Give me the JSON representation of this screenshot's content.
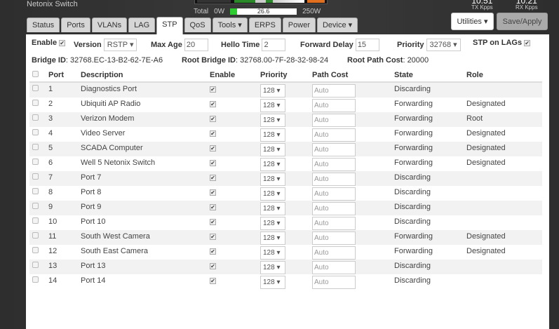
{
  "header": {
    "title": "Netonix Switch",
    "total_label": "Total",
    "power_min": "0W",
    "power_value": "26.6",
    "power_max": "250W",
    "power_fraction": 0.106,
    "tx_value": "10.51",
    "tx_label": "TX Kpps",
    "rx_value": "10.21",
    "rx_label": "RX Kpps"
  },
  "tabs": [
    {
      "label": "Status"
    },
    {
      "label": "Ports"
    },
    {
      "label": "VLANs"
    },
    {
      "label": "LAG"
    },
    {
      "label": "STP",
      "active": true
    },
    {
      "label": "QoS"
    },
    {
      "label": "Tools ▾"
    },
    {
      "label": "ERPS"
    },
    {
      "label": "Power"
    },
    {
      "label": "Device ▾"
    }
  ],
  "buttons": {
    "utilities": "Utilities ▾",
    "save": "Save/Apply"
  },
  "config": {
    "enable_label": "Enable",
    "version_label": "Version",
    "version": "RSTP ▾",
    "max_age_label": "Max Age",
    "max_age": "20",
    "hello_label": "Hello Time",
    "hello": "2",
    "fwd_label": "Forward Delay",
    "fwd": "15",
    "priority_label": "Priority",
    "priority": "32768 ▾",
    "lags_label": "STP on LAGs"
  },
  "info": {
    "bridge_label": "Bridge ID",
    "bridge": ": 32768.EC-13-B2-62-7E-A6",
    "root_label": "Root Bridge ID",
    "root": ": 32768.00-7F-28-32-98-24",
    "cost_label": "Root Path Cost",
    "cost": ": 20000"
  },
  "table": {
    "headers": [
      "Port",
      "Description",
      "Enable",
      "Priority",
      "Path Cost",
      "State",
      "Role"
    ],
    "rows": [
      {
        "port": "1",
        "desc": "Diagnostics Port",
        "priority": "128 ▾",
        "cost": "Auto",
        "state": "Discarding",
        "role": ""
      },
      {
        "port": "2",
        "desc": "Ubiquiti AP Radio",
        "priority": "128 ▾",
        "cost": "Auto",
        "state": "Forwarding",
        "role": "Designated"
      },
      {
        "port": "3",
        "desc": "Verizon Modem",
        "priority": "128 ▾",
        "cost": "Auto",
        "state": "Forwarding",
        "role": "Root"
      },
      {
        "port": "4",
        "desc": "Video Server",
        "priority": "128 ▾",
        "cost": "Auto",
        "state": "Forwarding",
        "role": "Designated"
      },
      {
        "port": "5",
        "desc": "SCADA Computer",
        "priority": "128 ▾",
        "cost": "Auto",
        "state": "Forwarding",
        "role": "Designated"
      },
      {
        "port": "6",
        "desc": "Well 5 Netonix Switch",
        "priority": "128 ▾",
        "cost": "Auto",
        "state": "Forwarding",
        "role": "Designated"
      },
      {
        "port": "7",
        "desc": "Port 7",
        "priority": "128 ▾",
        "cost": "Auto",
        "state": "Discarding",
        "role": ""
      },
      {
        "port": "8",
        "desc": "Port 8",
        "priority": "128 ▾",
        "cost": "Auto",
        "state": "Discarding",
        "role": ""
      },
      {
        "port": "9",
        "desc": "Port 9",
        "priority": "128 ▾",
        "cost": "Auto",
        "state": "Discarding",
        "role": ""
      },
      {
        "port": "10",
        "desc": "Port 10",
        "priority": "128 ▾",
        "cost": "Auto",
        "state": "Discarding",
        "role": ""
      },
      {
        "port": "11",
        "desc": "South West Camera",
        "priority": "128 ▾",
        "cost": "Auto",
        "state": "Forwarding",
        "role": "Designated"
      },
      {
        "port": "12",
        "desc": "South East Camera",
        "priority": "128 ▾",
        "cost": "Auto",
        "state": "Forwarding",
        "role": "Designated"
      },
      {
        "port": "13",
        "desc": "Port 13",
        "priority": "128 ▾",
        "cost": "Auto",
        "state": "Discarding",
        "role": ""
      },
      {
        "port": "14",
        "desc": "Port 14",
        "priority": "128 ▾",
        "cost": "Auto",
        "state": "Discarding",
        "role": ""
      }
    ]
  }
}
